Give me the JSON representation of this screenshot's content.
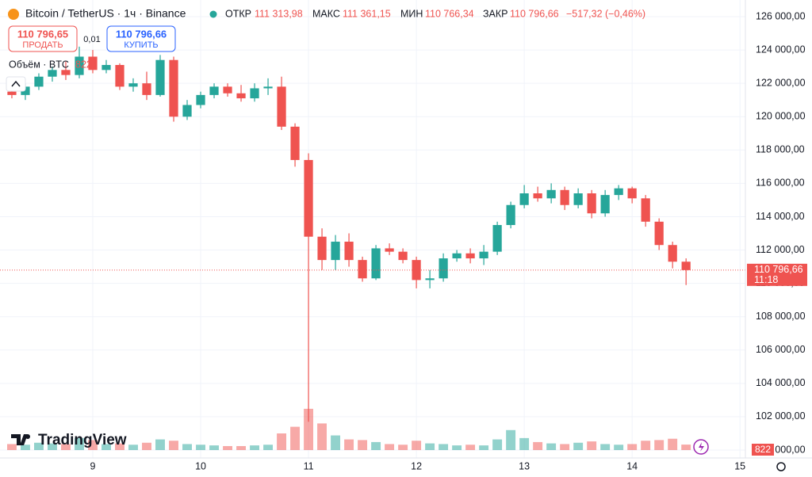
{
  "header": {
    "symbol": "Bitcoin / TetherUS · 1ч · Binance",
    "open_label": "ОТКР",
    "open": "111 313,98",
    "high_label": "МАКС",
    "high": "111 361,15",
    "low_label": "МИН",
    "low": "110 766,34",
    "close_label": "ЗАКР",
    "close": "110 796,66",
    "change": "−517,32 (−0,46%)"
  },
  "trade": {
    "sell_price": "110 796,65",
    "sell": "ПРОДАТЬ",
    "spread": "0,01",
    "buy_price": "110 796,66",
    "buy": "КУПИТЬ"
  },
  "volume_legend": "Объём · BTC",
  "brand": "TradingView",
  "chart_data": {
    "type": "candlestick",
    "x": [
      8.25,
      8.375,
      8.5,
      8.625,
      8.75,
      8.875,
      9.0,
      9.125,
      9.25,
      9.375,
      9.5,
      9.625,
      9.75,
      9.875,
      10.0,
      10.125,
      10.25,
      10.375,
      10.5,
      10.625,
      10.75,
      10.875,
      11.0,
      11.125,
      11.25,
      11.375,
      11.5,
      11.625,
      11.75,
      11.875,
      12.0,
      12.125,
      12.25,
      12.375,
      12.5,
      12.625,
      12.75,
      12.875,
      13.0,
      13.125,
      13.25,
      13.375,
      13.5,
      13.625,
      13.75,
      13.875,
      14.0,
      14.125,
      14.25,
      14.375,
      14.5
    ],
    "open": [
      121500,
      121300,
      121800,
      122400,
      122800,
      122500,
      123600,
      122800,
      123100,
      121800,
      122000,
      121300,
      123400,
      120000,
      120700,
      121300,
      121800,
      121400,
      121100,
      121700,
      121800,
      119400,
      117400,
      112800,
      111400,
      112500,
      111400,
      110300,
      112100,
      111900,
      111400,
      110200,
      110300,
      111500,
      111800,
      111500,
      111900,
      113500,
      114700,
      115400,
      115100,
      115600,
      114700,
      115400,
      114200,
      115300,
      115700,
      115100,
      113700,
      112300,
      111300
    ],
    "high": [
      122100,
      122000,
      122600,
      123000,
      123300,
      124200,
      124000,
      123400,
      123200,
      122300,
      122700,
      123700,
      123600,
      121000,
      121500,
      122000,
      122000,
      121900,
      122000,
      122300,
      122400,
      119600,
      117800,
      113300,
      112900,
      113000,
      111600,
      112300,
      112400,
      112100,
      111600,
      110800,
      111800,
      112000,
      112100,
      112300,
      113700,
      114900,
      115900,
      115800,
      116000,
      115800,
      115700,
      115600,
      115600,
      115900,
      115800,
      115300,
      113900,
      112500,
      111500
    ],
    "low": [
      121100,
      121000,
      121600,
      122100,
      122200,
      122300,
      122600,
      122600,
      121600,
      121500,
      121000,
      121200,
      119700,
      119800,
      120500,
      121100,
      121200,
      120900,
      120900,
      121300,
      119200,
      117000,
      101700,
      110800,
      110800,
      111000,
      110100,
      110200,
      111700,
      111200,
      109700,
      109700,
      110100,
      111300,
      111200,
      111100,
      111700,
      113300,
      114500,
      114900,
      114800,
      114400,
      114500,
      113900,
      114000,
      115000,
      114800,
      113400,
      112000,
      110900,
      109900
    ],
    "close": [
      121300,
      121800,
      122400,
      122800,
      122500,
      123600,
      122800,
      123100,
      121800,
      122000,
      121300,
      123400,
      120000,
      120700,
      121300,
      121800,
      121400,
      121100,
      121700,
      121800,
      119400,
      117400,
      112800,
      111400,
      112500,
      111400,
      110300,
      112100,
      111900,
      111400,
      110200,
      110300,
      111500,
      111800,
      111500,
      111900,
      113500,
      114700,
      115400,
      115100,
      115600,
      114700,
      115400,
      114200,
      115300,
      115700,
      115100,
      113700,
      112300,
      111300,
      110796.66
    ],
    "last_close_label": "110 796,66",
    "countdown": "11:18",
    "volume": [
      900,
      800,
      1100,
      1000,
      900,
      1800,
      1500,
      900,
      1000,
      800,
      1100,
      1600,
      1400,
      900,
      800,
      700,
      600,
      600,
      700,
      800,
      2500,
      3500,
      6200,
      4000,
      2200,
      1600,
      1500,
      1200,
      900,
      800,
      1400,
      1000,
      900,
      700,
      800,
      700,
      1600,
      3000,
      1800,
      1200,
      1000,
      900,
      1100,
      1300,
      900,
      800,
      900,
      1400,
      1500,
      1700,
      822
    ],
    "volume_lim": [
      0,
      20000
    ],
    "xlim": [
      8.14,
      15.05
    ],
    "xticks": [
      9,
      10,
      11,
      12,
      13,
      14,
      15
    ],
    "ylim": [
      100000,
      126000
    ],
    "yticks": [
      {
        "value": 100000,
        "label": "100 000,00"
      },
      {
        "value": 102000,
        "label": "102 000,00"
      },
      {
        "value": 104000,
        "label": "104 000,00"
      },
      {
        "value": 106000,
        "label": "106 000,00"
      },
      {
        "value": 108000,
        "label": "108 000,00"
      },
      {
        "value": 110000,
        "label": "110 000,00"
      },
      {
        "value": 112000,
        "label": "112 000,00"
      },
      {
        "value": 114000,
        "label": "114 000,00"
      },
      {
        "value": 116000,
        "label": "116 000,00"
      },
      {
        "value": 118000,
        "label": "118 000,00"
      },
      {
        "value": 120000,
        "label": "120 000,00"
      },
      {
        "value": 122000,
        "label": "122 000,00"
      },
      {
        "value": 124000,
        "label": "124 000,00"
      },
      {
        "value": 126000,
        "label": "126 000,00"
      }
    ],
    "up_color": "#26a69a",
    "down_color": "#ef5350",
    "grid": true
  }
}
